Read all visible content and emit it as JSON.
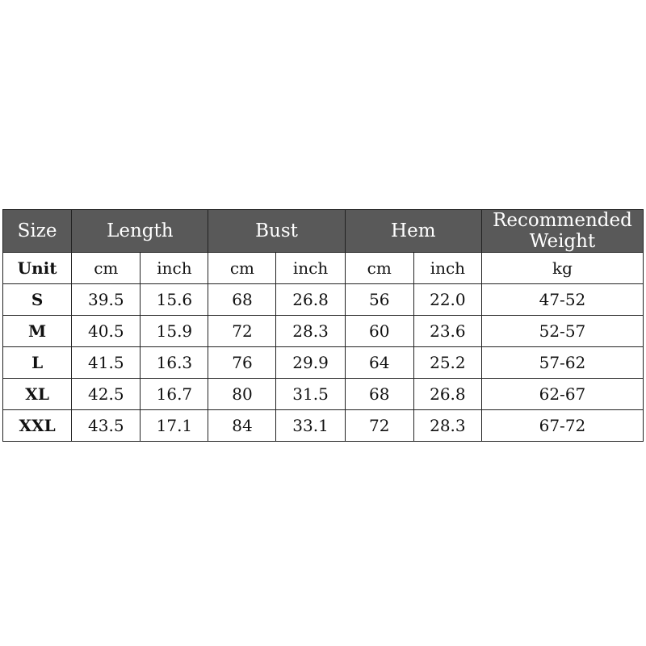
{
  "header": {
    "size": "Size",
    "length": "Length",
    "bust": "Bust",
    "hem": "Hem",
    "weight": "Recommended Weight"
  },
  "units": {
    "label": "Unit",
    "cm": "cm",
    "inch": "inch",
    "kg": "kg"
  },
  "rows": [
    {
      "size": "S",
      "length_cm": "39.5",
      "length_in": "15.6",
      "bust_cm": "68",
      "bust_in": "26.8",
      "hem_cm": "56",
      "hem_in": "22.0",
      "weight": "47-52"
    },
    {
      "size": "M",
      "length_cm": "40.5",
      "length_in": "15.9",
      "bust_cm": "72",
      "bust_in": "28.3",
      "hem_cm": "60",
      "hem_in": "23.6",
      "weight": "52-57"
    },
    {
      "size": "L",
      "length_cm": "41.5",
      "length_in": "16.3",
      "bust_cm": "76",
      "bust_in": "29.9",
      "hem_cm": "64",
      "hem_in": "25.2",
      "weight": "57-62"
    },
    {
      "size": "XL",
      "length_cm": "42.5",
      "length_in": "16.7",
      "bust_cm": "80",
      "bust_in": "31.5",
      "hem_cm": "68",
      "hem_in": "26.8",
      "weight": "62-67"
    },
    {
      "size": "XXL",
      "length_cm": "43.5",
      "length_in": "17.1",
      "bust_cm": "84",
      "bust_in": "33.1",
      "hem_cm": "72",
      "hem_in": "28.3",
      "weight": "67-72"
    }
  ],
  "colors": {
    "header_bg": "#595959",
    "header_text": "#ffffff"
  }
}
